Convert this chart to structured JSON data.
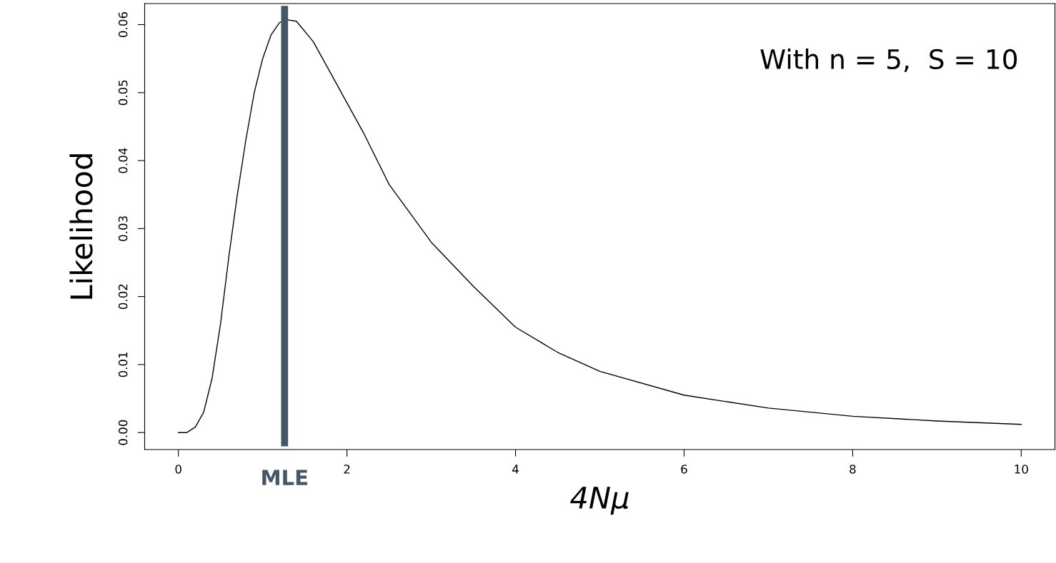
{
  "chart_data": {
    "type": "line",
    "xlabel": "4Nμ",
    "ylabel": "Likelihood",
    "x": [
      0,
      0.1,
      0.2,
      0.3,
      0.4,
      0.5,
      0.6,
      0.7,
      0.8,
      0.9,
      1.0,
      1.1,
      1.2,
      1.3,
      1.4,
      1.6,
      1.8,
      2.0,
      2.2,
      2.5,
      3.0,
      3.5,
      4.0,
      4.5,
      5.0,
      6.0,
      7.0,
      8.0,
      9.0,
      10.0
    ],
    "series": [
      {
        "color": "#000000",
        "values": [
          0,
          0.0,
          0.0008,
          0.003,
          0.008,
          0.016,
          0.026,
          0.035,
          0.043,
          0.05,
          0.055,
          0.0585,
          0.0603,
          0.0607,
          0.0605,
          0.0575,
          0.053,
          0.0485,
          0.044,
          0.0365,
          0.028,
          0.0215,
          0.0155,
          0.0118,
          0.009,
          0.0055,
          0.0036,
          0.0024,
          0.0017,
          0.0012
        ]
      }
    ],
    "xlim": [
      -0.4,
      10.4
    ],
    "ylim": [
      -0.0025,
      0.0631
    ],
    "xticks": [
      0,
      2,
      4,
      6,
      8,
      10
    ],
    "yticks": [
      {
        "value": 0,
        "label": "0.00"
      },
      {
        "value": 0.01,
        "label": "0.01"
      },
      {
        "value": 0.02,
        "label": "0.02"
      },
      {
        "value": 0.03,
        "label": "0.03"
      },
      {
        "value": 0.04,
        "label": "0.04"
      },
      {
        "value": 0.05,
        "label": "0.05"
      },
      {
        "value": 0.06,
        "label": "0.06"
      }
    ],
    "ref_lines": [
      {
        "axis": "x",
        "value": 1.26,
        "label": "MLE",
        "color": "#475569"
      }
    ],
    "annotations": [
      "With n = 5,  S = 10"
    ],
    "grid": false,
    "legend": false
  }
}
